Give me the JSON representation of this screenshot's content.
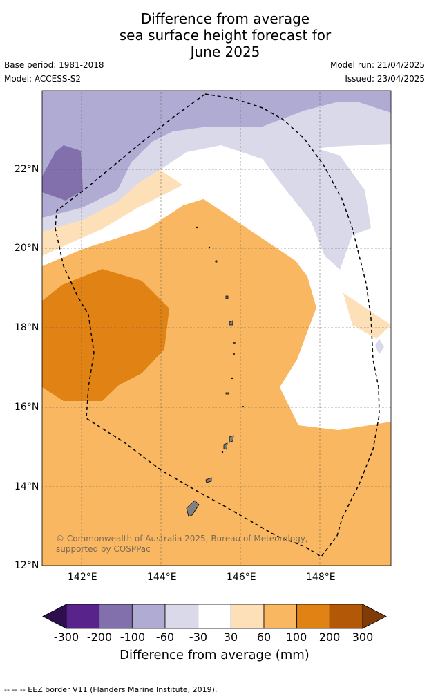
{
  "title_lines": [
    "Difference from average",
    "sea surface height forecast for",
    "June 2025"
  ],
  "meta": {
    "base_period": "Base period: 1981-2018",
    "model": "Model: ACCESS-S2",
    "model_run": "Model run: 21/04/2025",
    "issued": "Issued: 23/04/2025"
  },
  "map": {
    "lon_ticks": [
      "142°E",
      "144°E",
      "146°E",
      "148°E"
    ],
    "lat_ticks": [
      "22°N",
      "20°N",
      "18°N",
      "16°N",
      "14°N",
      "12°N"
    ],
    "lon_range": [
      141,
      149.8
    ],
    "lat_range": [
      12,
      24
    ],
    "credit": "© Commonwealth of Australia 2025, Bureau of Meteorology, supported by COSPPac"
  },
  "colorbar": {
    "ticks": [
      "-300",
      "-200",
      "-100",
      "-60",
      "-30",
      "30",
      "60",
      "100",
      "200",
      "300"
    ],
    "colors": [
      "#2d0f50",
      "#59238c",
      "#8270ad",
      "#b0abd3",
      "#d9d9ea",
      "#ffffff",
      "#fde0b8",
      "#f9b762",
      "#e08214",
      "#b35806",
      "#7f3b08"
    ],
    "label": "Difference from average (mm)"
  },
  "footer": "--  --  -- EEZ border V11 (Flanders Marine Institute, 2019)."
}
